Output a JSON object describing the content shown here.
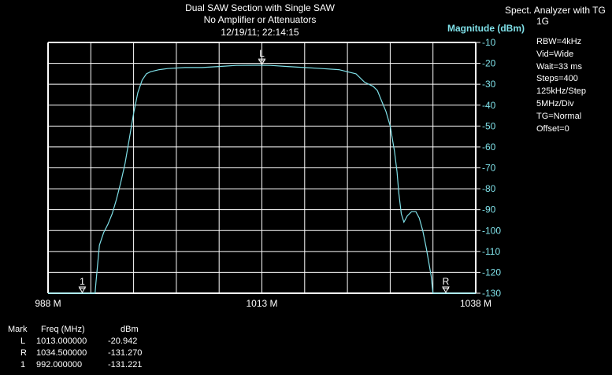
{
  "title": {
    "line1": "Dual SAW Section with Single SAW",
    "line2": "No Amplifier or Attenuators",
    "line3": "12/19/11; 22:14:15"
  },
  "analyzer": {
    "heading_1": "Spect. Analyzer with TG",
    "heading_2": "1G",
    "settings": [
      "RBW=4kHz",
      "Vid=Wide",
      "Wait=33 ms",
      "Steps=400",
      "125kHz/Step",
      "5MHz/Div",
      "TG=Normal",
      "Offset=0"
    ]
  },
  "markers_table": {
    "headers": [
      "Mark",
      "Freq (MHz)",
      "dBm"
    ],
    "rows": [
      {
        "mark": "L",
        "freq": "1013.000000",
        "dbm": "-20.942"
      },
      {
        "mark": "R",
        "freq": "1034.500000",
        "dbm": "-131.270"
      },
      {
        "mark": "1",
        "freq": "992.000000",
        "dbm": "-131.221"
      }
    ]
  },
  "colors": {
    "trace": "#7fe0e8",
    "grid": "#ffffff",
    "ylabel": "#7fe0e8",
    "background": "#000000"
  },
  "chart_data": {
    "type": "line",
    "ylabel": "Magnitude (dBm)",
    "x_tick_labels": [
      "988 M",
      "1013 M",
      "1038 M"
    ],
    "x_tick_values": [
      988,
      1013,
      1038
    ],
    "xlim": [
      988,
      1038
    ],
    "ylim": [
      -130,
      -10
    ],
    "y_ticks": [
      -10,
      -20,
      -30,
      -40,
      -50,
      -60,
      -70,
      -80,
      -90,
      -100,
      -110,
      -120,
      -130
    ],
    "x_divisions": 10,
    "grid": true,
    "series": [
      {
        "x": [
          988,
          993.5,
          993.6,
          994.0,
          994.5,
          995.0,
          995.5,
          996.0,
          996.5,
          997.0,
          997.5,
          998.0,
          998.5,
          999.0,
          999.5,
          1000.0,
          1001.0,
          1002.0,
          1004.0,
          1006.0,
          1008.0,
          1010.0,
          1012.0,
          1013.0,
          1014.0,
          1016.0,
          1018.0,
          1020.0,
          1022.0,
          1024.0,
          1025.0,
          1026.0,
          1026.5,
          1027.0,
          1027.5,
          1028.0,
          1028.5,
          1028.8,
          1029.0,
          1029.3,
          1029.6,
          1030.0,
          1030.5,
          1031.0,
          1031.4,
          1031.8,
          1032.2,
          1032.5,
          1032.8,
          1033.0,
          1038
        ],
        "y": [
          -130,
          -130,
          -125,
          -107,
          -101,
          -97,
          -92,
          -85,
          -77,
          -68,
          -56,
          -44,
          -34,
          -28,
          -25,
          -24,
          -23,
          -22.5,
          -22,
          -22,
          -21.5,
          -21,
          -20.9,
          -20.9,
          -21,
          -21.5,
          -22,
          -22.5,
          -23,
          -25,
          -29,
          -31,
          -33,
          -38,
          -43,
          -50,
          -62,
          -72,
          -82,
          -92,
          -96,
          -93,
          -91,
          -91,
          -94,
          -100,
          -108,
          -115,
          -122,
          -130,
          -130
        ]
      }
    ],
    "markers": [
      {
        "label": "L",
        "x": 1013.0,
        "y": -20.942
      },
      {
        "label": "R",
        "x": 1034.5,
        "y": -130
      },
      {
        "label": "1",
        "x": 992.0,
        "y": -130
      }
    ]
  }
}
